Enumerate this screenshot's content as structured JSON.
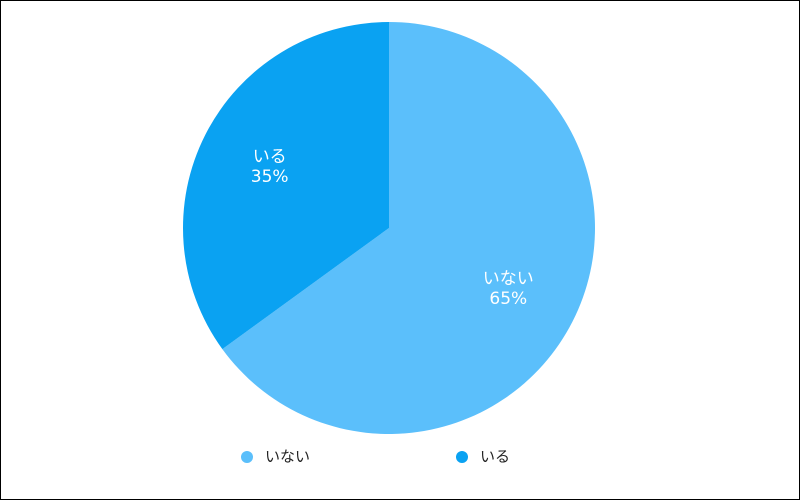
{
  "chart_data": {
    "type": "pie",
    "categories": [
      "いない",
      "いる"
    ],
    "values": [
      65,
      35
    ],
    "value_labels": [
      "65%",
      "35%"
    ],
    "colors": [
      "#5bbffb",
      "#0aa2f2"
    ]
  }
}
